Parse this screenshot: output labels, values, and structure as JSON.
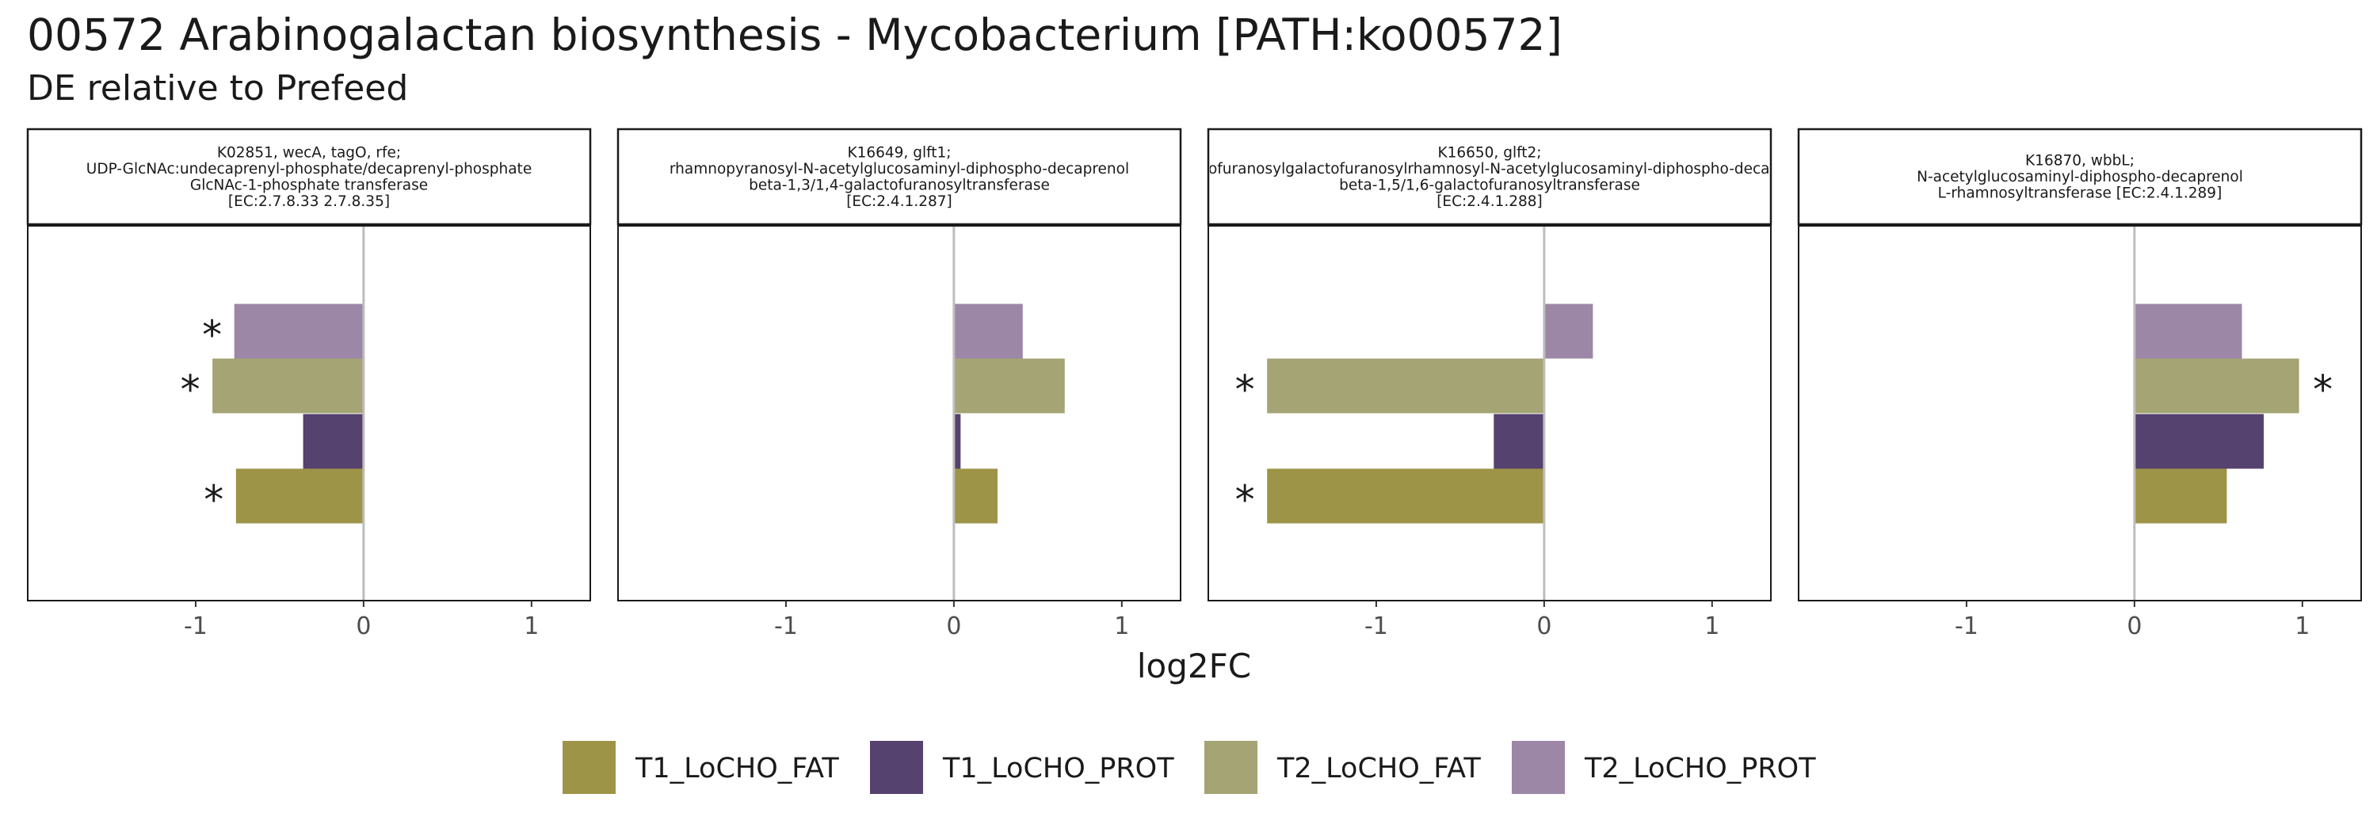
{
  "title": "00572 Arabinogalactan biosynthesis - Mycobacterium [PATH:ko00572]",
  "subtitle": "DE relative to Prefeed",
  "chart_data": {
    "type": "bar",
    "orientation": "horizontal",
    "xlabel": "log2FC",
    "xlim": [
      -2.0,
      1.35
    ],
    "xticks": [
      -1,
      0,
      1
    ],
    "xtick_labels": [
      "-1",
      "0",
      "1"
    ],
    "grid": false,
    "legend_position": "bottom",
    "series": [
      {
        "name": "T1_LoCHO_FAT",
        "color": "#9e9448"
      },
      {
        "name": "T1_LoCHO_PROT",
        "color": "#56426e"
      },
      {
        "name": "T2_LoCHO_FAT",
        "color": "#a4a474"
      },
      {
        "name": "T2_LoCHO_PROT",
        "color": "#9c87a6"
      }
    ],
    "panels": [
      {
        "label_lines": [
          "K02851, wecA, tagO, rfe;",
          "UDP-GlcNAc:undecaprenyl-phosphate/decaprenyl-phosphate",
          "GlcNAc-1-phosphate transferase",
          "[EC:2.7.8.33 2.7.8.35]"
        ],
        "values": {
          "T1_LoCHO_FAT": -0.76,
          "T1_LoCHO_PROT": -0.36,
          "T2_LoCHO_FAT": -0.9,
          "T2_LoCHO_PROT": -0.77
        },
        "significant": {
          "T1_LoCHO_FAT": true,
          "T1_LoCHO_PROT": false,
          "T2_LoCHO_FAT": true,
          "T2_LoCHO_PROT": true
        }
      },
      {
        "label_lines": [
          "K16649, glft1;",
          "rhamnopyranosyl-N-acetylglucosaminyl-diphospho-decaprenol",
          "beta-1,3/1,4-galactofuranosyltransferase",
          "[EC:2.4.1.287]"
        ],
        "values": {
          "T1_LoCHO_FAT": 0.26,
          "T1_LoCHO_PROT": 0.04,
          "T2_LoCHO_FAT": 0.66,
          "T2_LoCHO_PROT": 0.41
        },
        "significant": {
          "T1_LoCHO_FAT": false,
          "T1_LoCHO_PROT": false,
          "T2_LoCHO_FAT": false,
          "T2_LoCHO_PROT": false
        }
      },
      {
        "label_lines": [
          "K16650, glft2;",
          "galactofuranosylgalactofuranosylrhamnosyl-N-acetylglucosaminyl-diphospho-decaprenol",
          "beta-1,5/1,6-galactofuranosyltransferase",
          "[EC:2.4.1.288]"
        ],
        "values": {
          "T1_LoCHO_FAT": -1.65,
          "T1_LoCHO_PROT": -0.3,
          "T2_LoCHO_FAT": -1.65,
          "T2_LoCHO_PROT": 0.29
        },
        "significant": {
          "T1_LoCHO_FAT": true,
          "T1_LoCHO_PROT": false,
          "T2_LoCHO_FAT": true,
          "T2_LoCHO_PROT": false
        }
      },
      {
        "label_lines": [
          "K16870, wbbL;",
          "N-acetylglucosaminyl-diphospho-decaprenol",
          "L-rhamnosyltransferase [EC:2.4.1.289]"
        ],
        "values": {
          "T1_LoCHO_FAT": 0.55,
          "T1_LoCHO_PROT": 0.77,
          "T2_LoCHO_FAT": 0.98,
          "T2_LoCHO_PROT": 0.64
        },
        "significant": {
          "T1_LoCHO_FAT": false,
          "T1_LoCHO_PROT": false,
          "T2_LoCHO_FAT": true,
          "T2_LoCHO_PROT": false
        }
      }
    ],
    "significance_marker": "*"
  }
}
